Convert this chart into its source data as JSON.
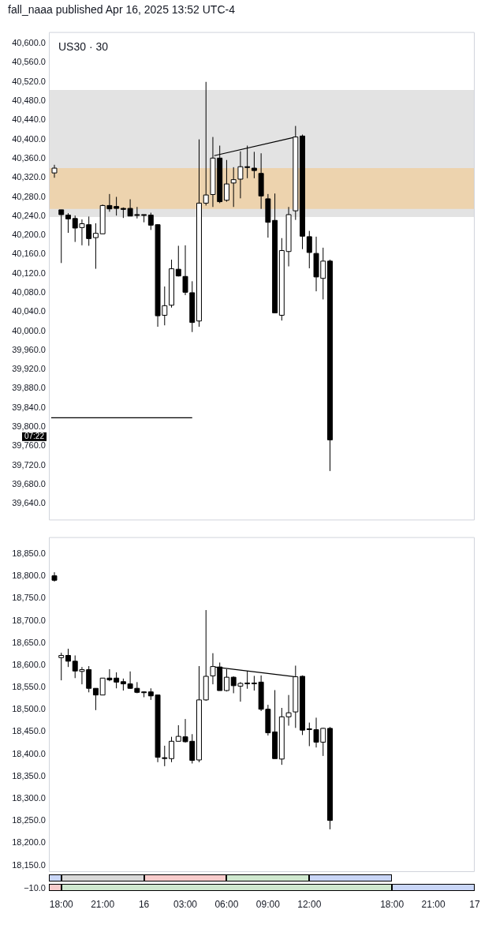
{
  "chart_data": [
    {
      "type": "candlestick",
      "title": "US30 · 30",
      "annotations": [
        "fall_naaa published Apr 16, 2025 13:52 UTC-4",
        "07:22"
      ],
      "x": [
        "2025-04-15T17:30",
        "2025-04-15T18:00",
        "2025-04-15T18:30",
        "2025-04-15T19:00",
        "2025-04-15T19:30",
        "2025-04-15T20:00",
        "2025-04-15T20:30",
        "2025-04-15T21:00",
        "2025-04-15T21:30",
        "2025-04-15T22:00",
        "2025-04-15T22:30",
        "2025-04-15T23:00",
        "2025-04-15T23:30",
        "2025-04-16T00:00",
        "2025-04-16T00:30",
        "2025-04-16T01:00",
        "2025-04-16T01:30",
        "2025-04-16T02:00",
        "2025-04-16T02:30",
        "2025-04-16T03:00",
        "2025-04-16T03:30",
        "2025-04-16T04:00",
        "2025-04-16T04:30",
        "2025-04-16T05:00",
        "2025-04-16T05:30",
        "2025-04-16T06:00",
        "2025-04-16T06:30",
        "2025-04-16T07:00",
        "2025-04-16T07:30",
        "2025-04-16T08:00",
        "2025-04-16T08:30",
        "2025-04-16T09:00",
        "2025-04-16T09:30",
        "2025-04-16T10:00",
        "2025-04-16T10:30",
        "2025-04-16T11:00",
        "2025-04-16T11:30",
        "2025-04-16T12:00",
        "2025-04-16T12:30",
        "2025-04-16T13:00",
        "2025-04-16T13:30"
      ],
      "ohlc": [
        [
          40330,
          40347,
          40320,
          40340
        ],
        [
          40253,
          40253,
          40142,
          40243
        ],
        [
          40242,
          40246,
          40205,
          40234
        ],
        [
          40235,
          40241,
          40186,
          40215
        ],
        [
          40216,
          40233,
          40179,
          40224
        ],
        [
          40222,
          40239,
          40178,
          40193
        ],
        [
          40195,
          40225,
          40130,
          40204
        ],
        [
          40203,
          40264,
          40203,
          40262
        ],
        [
          40262,
          40286,
          40249,
          40255
        ],
        [
          40260,
          40280,
          40241,
          40256
        ],
        [
          40256,
          40258,
          40236,
          40254
        ],
        [
          40256,
          40275,
          40240,
          40240
        ],
        [
          40243,
          40259,
          40235,
          40242
        ],
        [
          40243,
          40243,
          40227,
          40242
        ],
        [
          40242,
          40247,
          40211,
          40221
        ],
        [
          40222,
          40223,
          40009,
          40032
        ],
        [
          40033,
          40093,
          40012,
          40053
        ],
        [
          40054,
          40149,
          40049,
          40130
        ],
        [
          40129,
          40178,
          40114,
          40115
        ],
        [
          40114,
          40179,
          40075,
          40081
        ],
        [
          40080,
          40104,
          39998,
          40018
        ],
        [
          40021,
          40400,
          40009,
          40267
        ],
        [
          40267,
          40520,
          40262,
          40284
        ],
        [
          40285,
          40405,
          40259,
          40361
        ],
        [
          40361,
          40387,
          40267,
          40270
        ],
        [
          40273,
          40357,
          40270,
          40307
        ],
        [
          40309,
          40342,
          40259,
          40316
        ],
        [
          40317,
          40375,
          40277,
          40343
        ],
        [
          40343,
          40387,
          40319,
          40342
        ],
        [
          40340,
          40374,
          40319,
          40335
        ],
        [
          40329,
          40371,
          40255,
          40282
        ],
        [
          40276,
          40286,
          40195,
          40227
        ],
        [
          40231,
          40287,
          40038,
          40038
        ],
        [
          40033,
          40194,
          40022,
          40168
        ],
        [
          40166,
          40259,
          40135,
          40243
        ],
        [
          40251,
          40428,
          40232,
          40405
        ],
        [
          40407,
          40410,
          40171,
          40198
        ],
        [
          40197,
          40209,
          40131,
          40164
        ],
        [
          40162,
          40197,
          40083,
          40113
        ],
        [
          40110,
          40174,
          40066,
          40146
        ],
        [
          40146,
          40149,
          39708,
          39773
        ]
      ],
      "series": [
        {
          "type": "line",
          "color": "#000000",
          "x": [
            "2025-04-16T05:06",
            "2025-04-16T11:00"
          ],
          "values": [
            40366,
            40405
          ]
        },
        {
          "type": "line",
          "color": "#000000",
          "x": [
            "2025-04-15T17:16",
            "2025-04-16T03:30"
          ],
          "values": [
            39819,
            39819
          ]
        }
      ],
      "bands": [
        {
          "axis": "y",
          "from": 40238,
          "to": 40503,
          "color": "#e3e3e3"
        },
        {
          "axis": "y",
          "from": 40255,
          "to": 40340,
          "color": "#edd3ae"
        }
      ],
      "xlim": [
        "2025-04-15T17:06",
        "2025-04-17T00:00"
      ],
      "ylim": [
        39605,
        40624
      ],
      "yticks": [
        {
          "value": 39640,
          "label": "39,640.0"
        },
        {
          "value": 39680,
          "label": "39,680.0"
        },
        {
          "value": 39720,
          "label": "39,720.0"
        },
        {
          "value": 39760,
          "label": "39,760.0"
        },
        {
          "value": 39800,
          "label": "39,800.0"
        },
        {
          "value": 39840,
          "label": "39,840.0"
        },
        {
          "value": 39880,
          "label": "39,880.0"
        },
        {
          "value": 39920,
          "label": "39,920.0"
        },
        {
          "value": 39960,
          "label": "39,960.0"
        },
        {
          "value": 40000,
          "label": "40,000.0"
        },
        {
          "value": 40040,
          "label": "40,040.0"
        },
        {
          "value": 40080,
          "label": "40,080.0"
        },
        {
          "value": 40120,
          "label": "40,120.0"
        },
        {
          "value": 40160,
          "label": "40,160.0"
        },
        {
          "value": 40200,
          "label": "40,200.0"
        },
        {
          "value": 40240,
          "label": "40,240.0"
        },
        {
          "value": 40280,
          "label": "40,280.0"
        },
        {
          "value": 40320,
          "label": "40,320.0"
        },
        {
          "value": 40360,
          "label": "40,360.0"
        },
        {
          "value": 40400,
          "label": "40,400.0"
        },
        {
          "value": 40440,
          "label": "40,440.0"
        },
        {
          "value": 40480,
          "label": "40,480.0"
        },
        {
          "value": 40520,
          "label": "40,520.0"
        },
        {
          "value": 40560,
          "label": "40,560.0"
        },
        {
          "value": 40600,
          "label": "40,600.0"
        }
      ],
      "tick_labels": "y"
    },
    {
      "type": "candlestick",
      "x": [
        "2025-04-15T17:30",
        "2025-04-15T18:00",
        "2025-04-15T18:30",
        "2025-04-15T19:00",
        "2025-04-15T19:30",
        "2025-04-15T20:00",
        "2025-04-15T20:30",
        "2025-04-15T21:00",
        "2025-04-15T21:30",
        "2025-04-15T22:00",
        "2025-04-15T22:30",
        "2025-04-15T23:00",
        "2025-04-15T23:30",
        "2025-04-16T00:00",
        "2025-04-16T00:30",
        "2025-04-16T01:00",
        "2025-04-16T01:30",
        "2025-04-16T02:00",
        "2025-04-16T02:30",
        "2025-04-16T03:00",
        "2025-04-16T03:30",
        "2025-04-16T04:00",
        "2025-04-16T04:30",
        "2025-04-16T05:00",
        "2025-04-16T05:30",
        "2025-04-16T06:00",
        "2025-04-16T06:30",
        "2025-04-16T07:00",
        "2025-04-16T07:30",
        "2025-04-16T08:00",
        "2025-04-16T08:30",
        "2025-04-16T09:00",
        "2025-04-16T09:30",
        "2025-04-16T10:00",
        "2025-04-16T10:30",
        "2025-04-16T11:00",
        "2025-04-16T11:30",
        "2025-04-16T12:00",
        "2025-04-16T12:30",
        "2025-04-16T13:00",
        "2025-04-16T13:30"
      ],
      "ohlc": [
        [
          18801,
          18809,
          18788,
          18791
        ],
        [
          18617,
          18628,
          18566,
          18622
        ],
        [
          18622,
          18637,
          18596,
          18609
        ],
        [
          18609,
          18622,
          18571,
          18587
        ],
        [
          18586,
          18596,
          18557,
          18590
        ],
        [
          18590,
          18598,
          18539,
          18548
        ],
        [
          18548,
          18548,
          18499,
          18533
        ],
        [
          18533,
          18571,
          18533,
          18571
        ],
        [
          18571,
          18591,
          18564,
          18567
        ],
        [
          18571,
          18584,
          18548,
          18562
        ],
        [
          18563,
          18570,
          18543,
          18558
        ],
        [
          18558,
          18586,
          18547,
          18548
        ],
        [
          18548,
          18562,
          18537,
          18539
        ],
        [
          18540,
          18541,
          18528,
          18539
        ],
        [
          18540,
          18548,
          18522,
          18531
        ],
        [
          18533,
          18533,
          18382,
          18393
        ],
        [
          18392,
          18419,
          18373,
          18391
        ],
        [
          18390,
          18439,
          18382,
          18429
        ],
        [
          18429,
          18465,
          18429,
          18440
        ],
        [
          18439,
          18479,
          18426,
          18428
        ],
        [
          18429,
          18445,
          18379,
          18386
        ],
        [
          18387,
          18598,
          18382,
          18522
        ],
        [
          18522,
          18724,
          18520,
          18575
        ],
        [
          18576,
          18627,
          18557,
          18597
        ],
        [
          18596,
          18606,
          18543,
          18543
        ],
        [
          18543,
          18591,
          18541,
          18573
        ],
        [
          18573,
          18575,
          18537,
          18554
        ],
        [
          18553,
          18562,
          18518,
          18559
        ],
        [
          18560,
          18587,
          18547,
          18559
        ],
        [
          18560,
          18576,
          18543,
          18559
        ],
        [
          18562,
          18577,
          18497,
          18501
        ],
        [
          18501,
          18511,
          18442,
          18448
        ],
        [
          18450,
          18544,
          18390,
          18390
        ],
        [
          18389,
          18504,
          18376,
          18484
        ],
        [
          18484,
          18533,
          18464,
          18493
        ],
        [
          18495,
          18599,
          18459,
          18574
        ],
        [
          18575,
          18577,
          18443,
          18454
        ],
        [
          18457,
          18471,
          18418,
          18456
        ],
        [
          18455,
          18482,
          18415,
          18427
        ],
        [
          18427,
          18459,
          18396,
          18458
        ],
        [
          18458,
          18461,
          18231,
          18251
        ]
      ],
      "series": [
        {
          "type": "line",
          "color": "#000000",
          "x": [
            "2025-04-16T05:06",
            "2025-04-16T11:00"
          ],
          "values": [
            18596,
            18574
          ]
        }
      ],
      "xlim": [
        "2025-04-15T17:06",
        "2025-04-17T00:00"
      ],
      "ylim": [
        18135,
        18888
      ],
      "yticks": [
        {
          "value": 18150,
          "label": "18,150.0"
        },
        {
          "value": 18200,
          "label": "18,200.0"
        },
        {
          "value": 18250,
          "label": "18,250.0"
        },
        {
          "value": 18300,
          "label": "18,300.0"
        },
        {
          "value": 18350,
          "label": "18,350.0"
        },
        {
          "value": 18400,
          "label": "18,400.0"
        },
        {
          "value": 18450,
          "label": "18,450.0"
        },
        {
          "value": 18500,
          "label": "18,500.0"
        },
        {
          "value": 18550,
          "label": "18,550.0"
        },
        {
          "value": 18600,
          "label": "18,600.0"
        },
        {
          "value": 18650,
          "label": "18,650.0"
        },
        {
          "value": 18700,
          "label": "18,700.0"
        },
        {
          "value": 18750,
          "label": "18,750.0"
        },
        {
          "value": 18800,
          "label": "18,800.0"
        },
        {
          "value": 18850,
          "label": "18,850.0"
        }
      ],
      "xticks": [
        {
          "value": "2025-04-15T18:00",
          "label": "18:00"
        },
        {
          "value": "2025-04-15T21:00",
          "label": "21:00"
        },
        {
          "value": "2025-04-16T00:00",
          "label": "16"
        },
        {
          "value": "2025-04-16T03:00",
          "label": "03:00"
        },
        {
          "value": "2025-04-16T06:00",
          "label": "06:00"
        },
        {
          "value": "2025-04-16T09:00",
          "label": "09:00"
        },
        {
          "value": "2025-04-16T12:00",
          "label": "12:00"
        },
        {
          "value": "2025-04-16T18:00",
          "label": "18:00"
        },
        {
          "value": "2025-04-16T21:00",
          "label": "21:00"
        },
        {
          "value": "2025-04-17T00:00",
          "label": "17"
        }
      ]
    },
    {
      "type": "other",
      "annotations": [
        "−10.0"
      ]
    }
  ]
}
